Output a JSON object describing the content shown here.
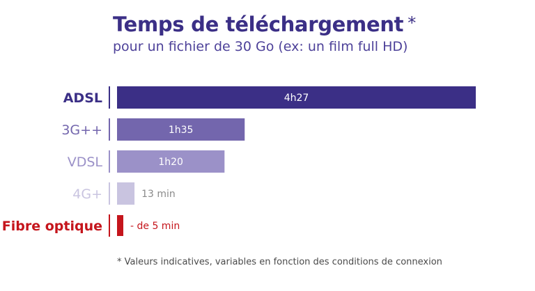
{
  "header": {
    "title": "Temps de téléchargement",
    "title_mark": "*",
    "subtitle": "pour un fichier de 30 Go (ex: un film full HD)"
  },
  "footnote": "* Valeurs indicatives, variables en fonction des conditions de connexion",
  "colors": {
    "ADSL": "#3b2f86",
    "3G++": "#7366ad",
    "VDSL": "#9b91c8",
    "4G+": "#c9c4e0",
    "Fibre optique": "#c5151c"
  },
  "chart_data": {
    "type": "bar",
    "orientation": "horizontal",
    "categories": [
      "ADSL",
      "3G++",
      "VDSL",
      "4G+",
      "Fibre optique"
    ],
    "values": [
      267,
      95,
      80,
      13,
      5
    ],
    "value_unit": "minutes",
    "data_labels": [
      "4h27",
      "1h35",
      "1h20",
      "13 min",
      "- de 5 min"
    ],
    "label_colors": [
      "#3b2f86",
      "#7366ad",
      "#9b91c8",
      "#c9c4e0",
      "#c5151c"
    ],
    "title": "Temps de téléchargement",
    "xlim": [
      0,
      267
    ],
    "grid": false,
    "legend": "none"
  }
}
